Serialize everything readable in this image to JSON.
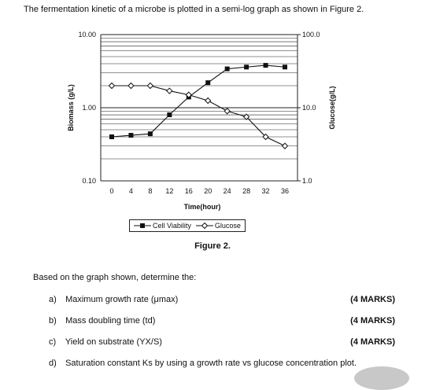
{
  "intro": "The fermentation kinetic of a microbe is plotted in a semi-log graph as shown in Figure 2.",
  "chart_data": {
    "type": "line",
    "x": [
      0,
      4,
      8,
      12,
      16,
      20,
      24,
      28,
      32,
      36
    ],
    "xticks": [
      "0",
      "4",
      "8",
      "12",
      "16",
      "20",
      "24",
      "28",
      "32",
      "36"
    ],
    "xlabel": "Time(hour)",
    "ylabel": "Biomass (g/L)",
    "ylim": [
      0.1,
      10
    ],
    "yscale": "log",
    "yticks": [
      "10.00",
      "1.00",
      "0.10"
    ],
    "y2label": "Glucose(g/L)",
    "y2lim": [
      1,
      100
    ],
    "y2scale": "log",
    "y2ticks": [
      "100.0",
      "10.0",
      "1.0"
    ],
    "grid": true,
    "series": [
      {
        "name": "Cell Viability",
        "axis": "left",
        "marker": "filled-square",
        "values": [
          0.4,
          0.42,
          0.44,
          0.8,
          1.4,
          2.2,
          3.4,
          3.6,
          3.8,
          3.6
        ]
      },
      {
        "name": "Glucose",
        "axis": "right",
        "marker": "open-diamond",
        "values": [
          20,
          20,
          20,
          17,
          15,
          12.5,
          9,
          7.5,
          4,
          3
        ]
      }
    ]
  },
  "figure_caption": "Figure 2.",
  "lead": "Based on the graph shown, determine the:",
  "questions": [
    {
      "label": "a)",
      "text": "Maximum growth rate (μmax)",
      "marks": "(4 MARKS)"
    },
    {
      "label": "b)",
      "text": "Mass doubling time (td)",
      "marks": "(4 MARKS)"
    },
    {
      "label": "c)",
      "text": "Yield on substrate (YX/S)",
      "marks": "(4 MARKS)"
    },
    {
      "label": "d)",
      "text": "Saturation constant Ks by using a growth rate vs glucose concentration plot.",
      "marks": ""
    }
  ]
}
